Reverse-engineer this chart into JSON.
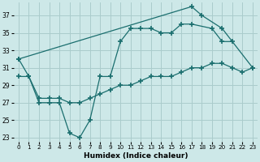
{
  "background": "#cde8e8",
  "grid_color": "#aacccc",
  "line_color": "#1a6e6e",
  "xlabel": "Humidex (Indice chaleur)",
  "yticks": [
    23,
    25,
    27,
    29,
    31,
    33,
    35,
    37
  ],
  "xticks": [
    0,
    1,
    2,
    3,
    4,
    5,
    6,
    7,
    8,
    9,
    10,
    11,
    12,
    13,
    14,
    15,
    16,
    17,
    18,
    19,
    20,
    21,
    22,
    23
  ],
  "ylim": [
    22.5,
    38.5
  ],
  "xlim": [
    -0.5,
    23.5
  ],
  "line1_x": [
    0,
    17,
    18,
    20,
    23
  ],
  "line1_y": [
    32,
    38,
    37,
    35.5,
    31
  ],
  "line2_x": [
    0,
    1,
    2,
    3,
    4,
    5,
    6,
    7,
    8,
    9,
    10,
    11,
    12,
    13,
    14,
    15,
    16,
    17,
    19,
    20,
    21
  ],
  "line2_y": [
    32,
    30,
    27,
    27,
    27,
    23.5,
    23,
    25,
    30,
    30,
    34,
    35.5,
    35.5,
    35.5,
    35,
    35,
    36,
    36,
    35.5,
    34,
    34
  ],
  "line3_x": [
    0,
    1,
    2,
    3,
    4,
    5,
    6,
    7,
    8,
    9,
    10,
    11,
    12,
    13,
    14,
    15,
    16,
    17,
    18,
    19,
    20,
    21,
    22,
    23
  ],
  "line3_y": [
    30,
    30,
    27.5,
    27.5,
    27.5,
    27,
    27,
    27.5,
    28,
    28.5,
    29,
    29,
    29.5,
    30,
    30,
    30,
    30.5,
    31,
    31,
    31.5,
    31.5,
    31,
    30.5,
    31
  ]
}
